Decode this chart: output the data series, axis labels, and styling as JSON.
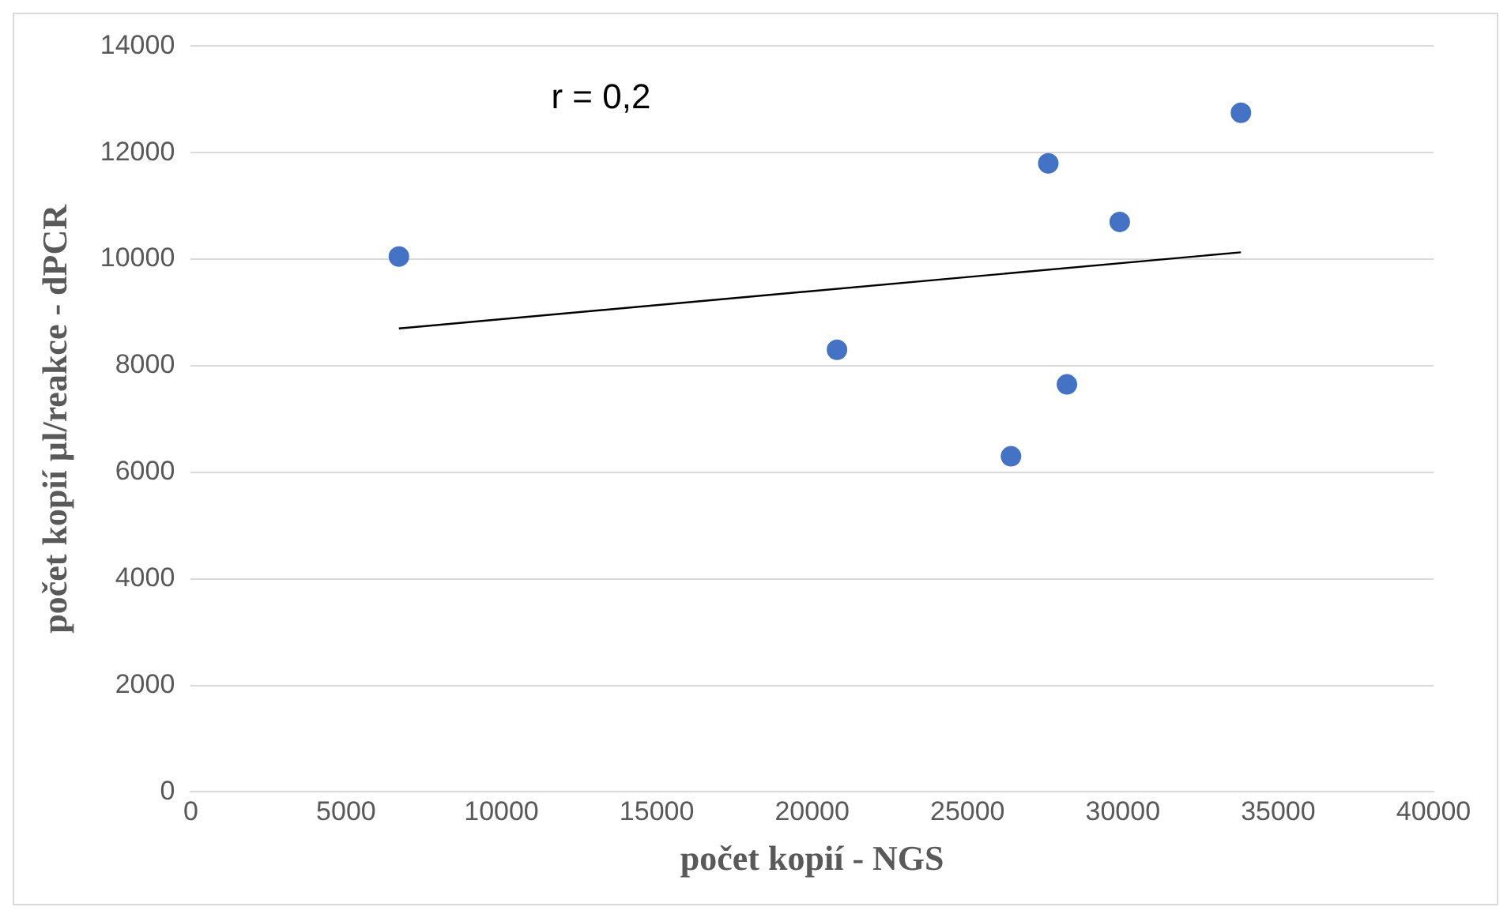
{
  "chart_data": {
    "type": "scatter",
    "xlabel": "počet kopií - NGS",
    "ylabel": "počet kopií µl/reakce - dPCR",
    "annotations": [
      "r = 0,2"
    ],
    "xlim": [
      0,
      40000
    ],
    "xticks": [
      0,
      5000,
      10000,
      15000,
      20000,
      25000,
      30000,
      35000,
      40000
    ],
    "ylim": [
      0,
      14000
    ],
    "yticks": [
      0,
      2000,
      4000,
      6000,
      8000,
      10000,
      12000,
      14000
    ],
    "grid": "y",
    "legend": false,
    "series": [
      {
        "color": "#4472c4",
        "marker": "circle",
        "x": [
          6700,
          20800,
          26400,
          27600,
          28200,
          29900,
          33800
        ],
        "values": [
          10050,
          8300,
          6300,
          11800,
          7650,
          10700,
          12750
        ]
      },
      {
        "type": "line",
        "color": "#000000",
        "marker": "none",
        "x": [
          6700,
          33800
        ],
        "values": [
          8700,
          10130
        ]
      }
    ]
  }
}
